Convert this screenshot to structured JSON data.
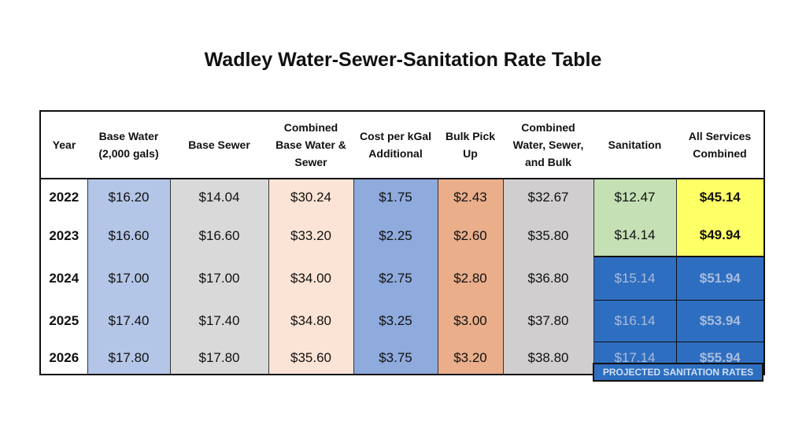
{
  "title": "Wadley Water-Sewer-Sanitation Rate Table",
  "headers": [
    "Year",
    "Base Water (2,000 gals)",
    "Base Sewer",
    "Combined Base Water & Sewer",
    "Cost per kGal Additional",
    "Bulk Pick Up",
    "Combined Water, Sewer, and Bulk",
    "Sanitation",
    "All Services Combined"
  ],
  "rows": [
    [
      "2022",
      "$16.20",
      "$14.04",
      "$30.24",
      "$1.75",
      "$2.43",
      "$32.67",
      "$12.47",
      "$45.14"
    ],
    [
      "2023",
      "$16.60",
      "$16.60",
      "$33.20",
      "$2.25",
      "$2.60",
      "$35.80",
      "$14.14",
      "$49.94"
    ],
    [
      "2024",
      "$17.00",
      "$17.00",
      "$34.00",
      "$2.75",
      "$2.80",
      "$36.80",
      "$15.14",
      "$51.94"
    ],
    [
      "2025",
      "$17.40",
      "$17.40",
      "$34.80",
      "$3.25",
      "$3.00",
      "$37.80",
      "$16.14",
      "$53.94"
    ],
    [
      "2026",
      "$17.80",
      "$17.80",
      "$35.60",
      "$3.75",
      "$3.20",
      "$38.80",
      "$17.14",
      "$55.94"
    ]
  ],
  "legend": "PROJECTED SANITATION RATES",
  "colors": {
    "base_water": "#b4c6e7",
    "base_sewer": "#d9d9d9",
    "combined": "#fbe4d5",
    "cost_kgal": "#8faadc",
    "bulk": "#eaae8b",
    "combined_bulk": "#d0cece",
    "sanitation": "#c5e0b4",
    "all_services": "#ffff66",
    "projected": "#2e6ec0"
  }
}
